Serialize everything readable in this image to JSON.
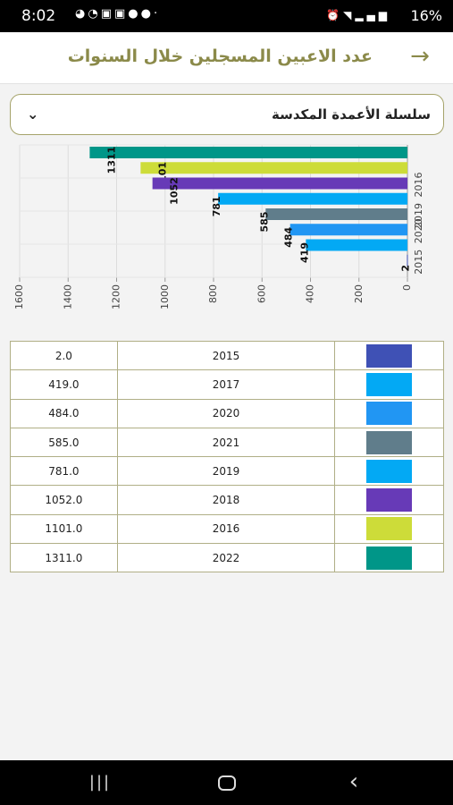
{
  "status_bar": {
    "time": "8:02",
    "notification_icons": [
      "messenger-icon",
      "whatsapp-icon",
      "vpn-icon",
      "vpn-icon",
      "facebook-icon",
      "facebook-icon"
    ],
    "battery": "16%"
  },
  "header": {
    "title": "عدد الاعبين المسجلين خلال السنوات",
    "back_icon": "arrow-right-icon"
  },
  "dropdown": {
    "selected": "سلسلة الأعمدة المكدسة",
    "icon": "chevron-down-icon"
  },
  "chart_data": {
    "type": "bar",
    "orientation": "horizontal",
    "categories": [
      "2022",
      "2016",
      "2018",
      "2019",
      "2021",
      "2020",
      "2017",
      "2015"
    ],
    "values": [
      1311,
      1101,
      1052,
      781,
      585,
      484,
      419,
      2
    ],
    "colors": [
      "#009688",
      "#cddc39",
      "#673ab7",
      "#03a9f4",
      "#607d8b",
      "#2196f3",
      "#03a9f4",
      "#3f51b5"
    ],
    "axis_ticks": [
      0,
      200,
      400,
      600,
      800,
      1000,
      1200,
      1400,
      1600
    ],
    "category_tick_labels": [
      "2016",
      "2019",
      "2020",
      "2015"
    ],
    "xlim": [
      0,
      1600
    ],
    "grid": true
  },
  "table": {
    "rows": [
      {
        "value": "2.0",
        "year": "2015",
        "color": "#3f51b5"
      },
      {
        "value": "419.0",
        "year": "2017",
        "color": "#03a9f4"
      },
      {
        "value": "484.0",
        "year": "2020",
        "color": "#2196f3"
      },
      {
        "value": "585.0",
        "year": "2021",
        "color": "#607d8b"
      },
      {
        "value": "781.0",
        "year": "2019",
        "color": "#03a9f4"
      },
      {
        "value": "1052.0",
        "year": "2018",
        "color": "#673ab7"
      },
      {
        "value": "1101.0",
        "year": "2016",
        "color": "#cddc39"
      },
      {
        "value": "1311.0",
        "year": "2022",
        "color": "#009688"
      }
    ]
  },
  "nav_bar": {
    "recents_icon": "recents-icon",
    "home_icon": "home-icon",
    "back_icon": "back-chevron-icon"
  }
}
